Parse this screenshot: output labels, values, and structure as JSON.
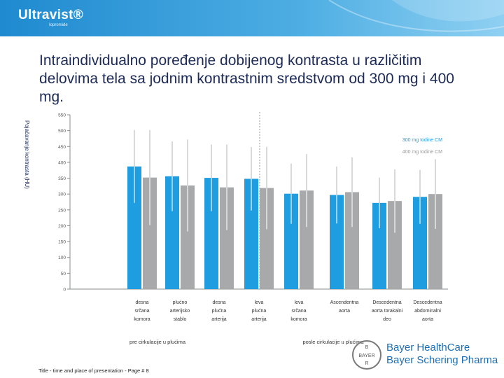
{
  "brand": {
    "name": "Ultravist®",
    "sub": "Iopromide"
  },
  "title": "Intraindividualno poređenje dobijenog kontrasta u različitim delovima tela sa jodnim kontrastnim sredstvom od 300 mg i 400 mg.",
  "footer": "Title - time and place of presentation - Page # 8",
  "company": {
    "line1": "Bayer HealthCare",
    "line2": "Bayer Schering Pharma"
  },
  "colors": {
    "series300": "#1e9ee0",
    "series400": "#a8a9ab",
    "errorbar": "#d8d9db",
    "axis": "#8a8c8e"
  },
  "chart_data": {
    "type": "bar",
    "ylabel": "Pojačavanje kontrasta (HU)",
    "ylim": [
      0,
      550
    ],
    "yticks": [
      0,
      50,
      100,
      150,
      200,
      250,
      300,
      350,
      400,
      450,
      500,
      550
    ],
    "categories": [
      "desna srčana komora",
      "plućno arterijsko stablo",
      "desna plućna arterija",
      "leva plućna arterija",
      "leva srčana komora",
      "Ascendentna aorta",
      "Descedentna aorta torakalni deo",
      "Descedentna abdominalni aorta"
    ],
    "category_lines": [
      [
        "desna",
        "srčana",
        "komora"
      ],
      [
        "plućno",
        "arterijsko",
        "stablo"
      ],
      [
        "desna",
        "plućna",
        "arterija"
      ],
      [
        "leva",
        "plućna",
        "arterija"
      ],
      [
        "leva",
        "srčana",
        "komora"
      ],
      [
        "Ascendentna",
        "aorta"
      ],
      [
        "Descedentna",
        "aorta torakalni",
        "deo"
      ],
      [
        "Descedentna",
        "abdominalni",
        "aorta"
      ]
    ],
    "series": [
      {
        "name": "300 mg Iodine CM",
        "values": [
          387,
          356,
          351,
          348,
          301,
          297,
          272,
          291
        ],
        "errors": [
          115,
          110,
          105,
          100,
          95,
          90,
          80,
          85
        ]
      },
      {
        "name": "400 mg Iodine CM",
        "values": [
          352,
          327,
          321,
          319,
          311,
          306,
          278,
          300
        ],
        "errors": [
          150,
          145,
          135,
          130,
          115,
          110,
          100,
          110
        ]
      }
    ],
    "groups": [
      {
        "label": "pre cirkulacije u plućima",
        "categories": [
          0,
          1,
          2,
          3
        ]
      },
      {
        "label": "posle cirkulacije u plućima",
        "categories": [
          4,
          5,
          6,
          7
        ]
      }
    ],
    "legend_position": "top-right",
    "grid": false
  }
}
